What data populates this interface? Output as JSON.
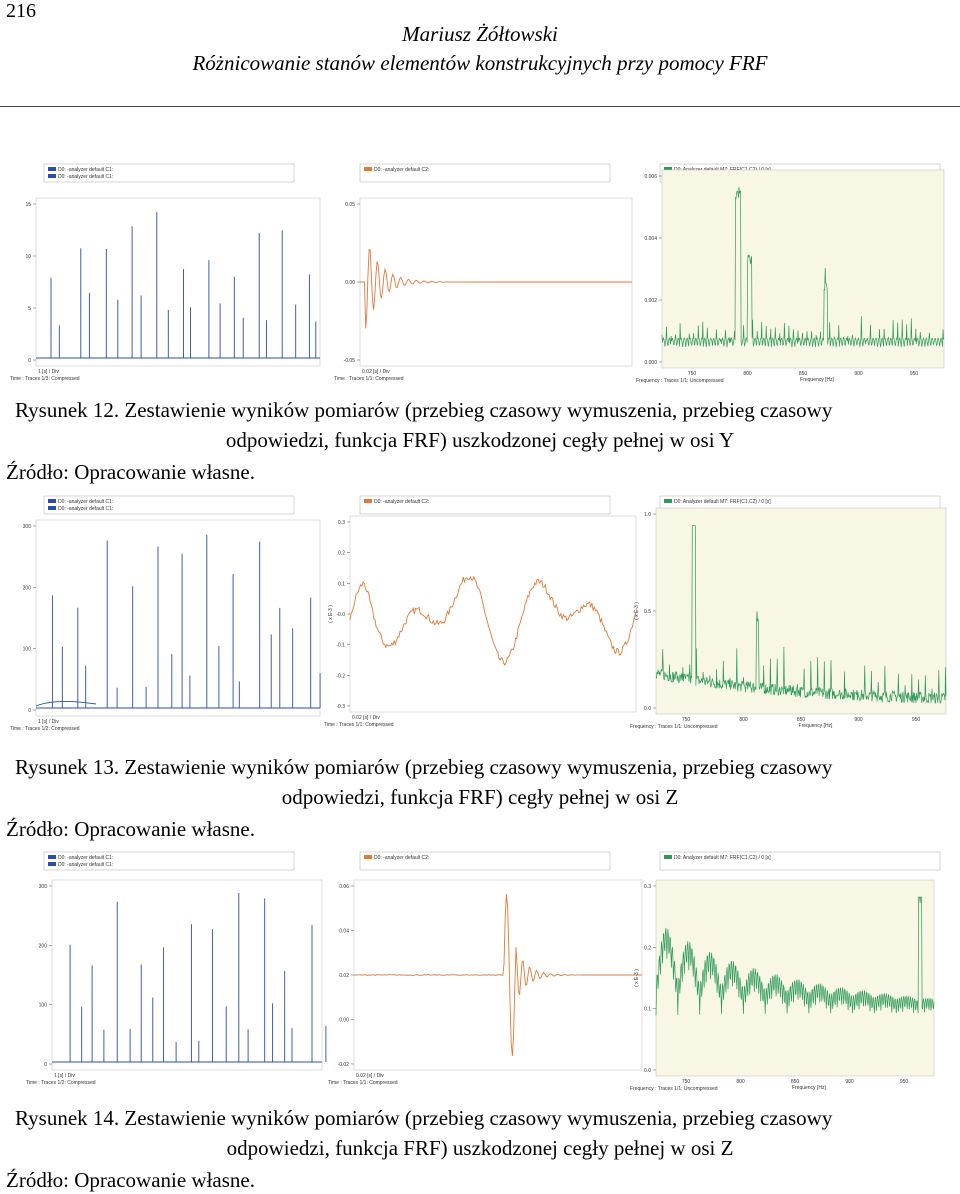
{
  "header": {
    "page_number": "216",
    "author": "Mariusz Żółtowski",
    "title": "Różnicowanie stanów elementów konstrukcyjnych przy pomocy FRF"
  },
  "figures": [
    {
      "caption_line1": "Rysunek 12. Zestawienie wyników pomiarów (przebieg czasowy wymuszenia, przebieg czasowy",
      "caption_line2": "odpowiedzi, funkcja FRF) uszkodzonej cegły pełnej w osi Y",
      "source": "Źródło: Opracowanie własne.",
      "panels": [
        {
          "legend": [
            "D0: -analyzer default C1:",
            "D0: -analyzer default C1:"
          ],
          "yticks": [
            "15",
            "10",
            "5",
            "0"
          ],
          "xlabel": "1 [s] / Div",
          "footer": "Time : Traces 1/3: Compressed"
        },
        {
          "legend": [
            "D0: -analyzer default C2:"
          ],
          "yticks": [
            "0.05",
            "0.00",
            "-0.05"
          ],
          "xlabel": "0.02 [s] / Div",
          "footer": "Time : Traces 1/1: Compressed"
        },
        {
          "legend": [
            "D0: Analyzer default M7: FRF(C1,C2) / 0 [s]"
          ],
          "yticks": [
            "0.006",
            "0.004",
            "0.002",
            "0.000"
          ],
          "xticks": [
            "750",
            "800",
            "850",
            "900",
            "950"
          ],
          "xlabel": "Frequency [Hz]",
          "footer": "Frequency : Traces 1/1: Uncompressed"
        }
      ]
    },
    {
      "caption_line1": "Rysunek 13. Zestawienie wyników pomiarów (przebieg czasowy wymuszenia, przebieg czasowy",
      "caption_line2": "odpowiedzi, funkcja FRF) cegły pełnej w osi Z",
      "source": "Źródło: Opracowanie własne.",
      "panels": [
        {
          "legend": [
            "D0: -analyzer default C1:",
            "D0: -analyzer default C1:"
          ],
          "yticks": [
            "300",
            "200",
            "100",
            "0"
          ],
          "xlabel": "1 [s] / Div",
          "footer": "Time : Traces 1/2: Compressed"
        },
        {
          "legend": [
            "D0: -analyzer default C2:"
          ],
          "yticks": [
            "0.3",
            "0.2",
            "0.1",
            "-0.0",
            "-0.1",
            "-0.2",
            "-0.3"
          ],
          "yunit": "( x E-3 )",
          "xlabel": "0.02 [s] / Div",
          "footer": "Time : Traces 1/1: Compressed"
        },
        {
          "legend": [
            "D0: Analyzer default M7: FRF(C1,C2) / 0 [s]"
          ],
          "yticks": [
            "1.0",
            "0.5",
            "0.0"
          ],
          "yunit": "( x E-3 )",
          "xticks": [
            "750",
            "800",
            "850",
            "900",
            "950"
          ],
          "xlabel": "Frequency [Hz]",
          "footer": "Frequency : Traces 1/1: Uncompressed"
        }
      ]
    },
    {
      "caption_line1": "Rysunek 14. Zestawienie wyników pomiarów (przebieg czasowy wymuszenia, przebieg czasowy",
      "caption_line2": "odpowiedzi, funkcja FRF) uszkodzonej cegły pełnej w osi Z",
      "source": "Źródło: Opracowanie własne.",
      "panels": [
        {
          "legend": [
            "D0: -analyzer default C1:",
            "D0: -analyzer default C1:"
          ],
          "yticks": [
            "300",
            "200",
            "100",
            "0"
          ],
          "xlabel": "1 [s] / Div",
          "footer": "Time : Traces 1/2: Compressed"
        },
        {
          "legend": [
            "D0: -analyzer default C2:"
          ],
          "yticks": [
            "0.06",
            "0.04",
            "0.02",
            "0.00",
            "-0.02"
          ],
          "xlabel": "0.02 [s] / Div",
          "footer": "Time : Traces 1/1: Compressed"
        },
        {
          "legend": [
            "D0: Analyzer default M7: FRF(C1,C2) / 0 [s]"
          ],
          "yticks": [
            "0.3",
            "0.2",
            "0.1",
            "0.0"
          ],
          "yunit": "( x E-3 )",
          "xticks": [
            "750",
            "800",
            "850",
            "900",
            "950"
          ],
          "xlabel": "Frequency [Hz]",
          "footer": "Frequency : Traces 1/1: Uncompressed"
        }
      ]
    }
  ],
  "colors": {
    "excitation": "#2a4fa8",
    "response": "#e07a38",
    "frf": "#2e9a5a",
    "frf_panel_bg": "#f8f6e4",
    "legend_bg": "#1e2540"
  }
}
